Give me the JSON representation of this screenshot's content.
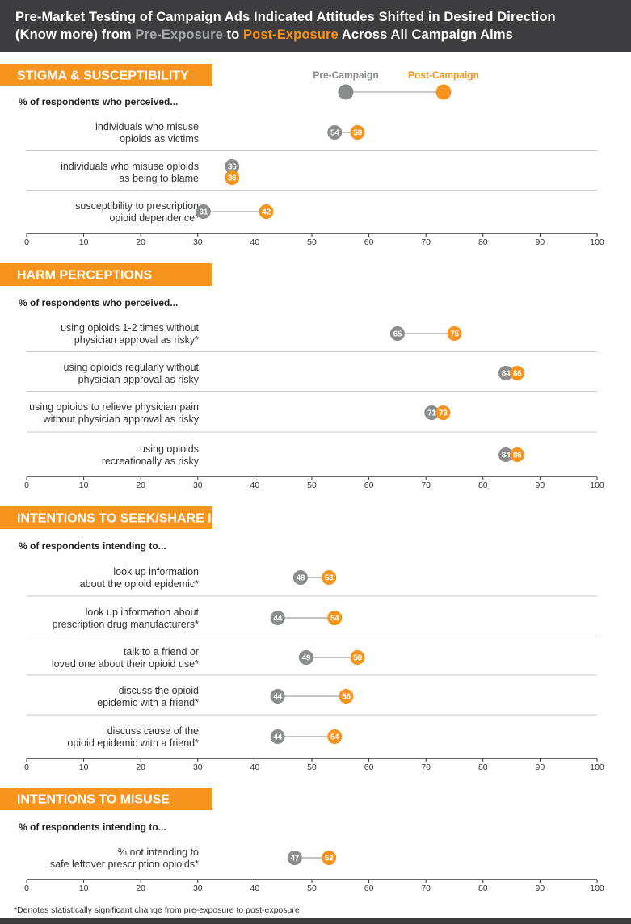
{
  "header": {
    "line1": "Pre-Market Testing of Campaign Ads Indicated Attitudes Shifted in Desired Direction",
    "line2_a": "(Know more) from ",
    "pre_word": "Pre-Exposure",
    "line2_b": " to ",
    "post_word": "Post-Exposure",
    "line2_c": " Across All Campaign Aims"
  },
  "legend": {
    "pre": "Pre-Campaign",
    "post": "Post-Campaign"
  },
  "colors": {
    "pre": "#8a8c8e",
    "post": "#f7941d",
    "header_bg": "#3d3d3f",
    "section_bg": "#f7941d"
  },
  "footnote": "*Denotes statistically significant change from pre-exposure to post-exposure",
  "chart_data": {
    "type": "dumbbell",
    "xlim": [
      0,
      100
    ],
    "xticks": [
      0,
      10,
      20,
      30,
      40,
      50,
      60,
      70,
      80,
      90,
      100
    ],
    "series": [
      {
        "name": "Pre-Campaign"
      },
      {
        "name": "Post-Campaign"
      }
    ],
    "sections": [
      {
        "title": "STIGMA & SUSCEPTIBILITY",
        "subtitle": "% of respondents who perceived...",
        "rows": [
          {
            "label": [
              "individuals who misuse",
              "opioids as victims"
            ],
            "pre": 54,
            "post": 58
          },
          {
            "label": [
              "individuals who misuse opioids",
              "as being to blame"
            ],
            "pre": 36,
            "post": 36
          },
          {
            "label": [
              "susceptibility to prescription",
              "opioid dependence*"
            ],
            "pre": 31,
            "post": 42
          }
        ]
      },
      {
        "title": "HARM PERCEPTIONS",
        "subtitle": "% of respondents who perceived...",
        "rows": [
          {
            "label": [
              "using opioids 1-2 times without",
              "physician approval as risky*"
            ],
            "pre": 65,
            "post": 75
          },
          {
            "label": [
              "using opioids regularly without",
              "physician approval as risky"
            ],
            "pre": 84,
            "post": 86
          },
          {
            "label": [
              "using opioids to relieve physician pain",
              "without physician approval as risky"
            ],
            "pre": 71,
            "post": 73
          },
          {
            "label": [
              "using opioids",
              "recreationally as risky"
            ],
            "pre": 84,
            "post": 86
          }
        ]
      },
      {
        "title": "INTENTIONS TO SEEK/SHARE INFORMATION",
        "subtitle": "% of respondents intending to...",
        "rows": [
          {
            "label": [
              "look up information",
              "about the opioid epidemic*"
            ],
            "pre": 48,
            "post": 53
          },
          {
            "label": [
              "look up information about",
              "prescription drug manufacturers*"
            ],
            "pre": 44,
            "post": 54
          },
          {
            "label": [
              "talk to a friend or",
              "loved one about their opioid use*"
            ],
            "pre": 49,
            "post": 58
          },
          {
            "label": [
              "discuss the opioid",
              "epidemic with a friend*"
            ],
            "pre": 44,
            "post": 56
          },
          {
            "label": [
              "discuss cause of the",
              "opioid epidemic with a friend*"
            ],
            "pre": 44,
            "post": 54
          }
        ]
      },
      {
        "title": "INTENTIONS TO MISUSE",
        "subtitle": "% of respondents intending to...",
        "rows": [
          {
            "label": [
              "% not intending to",
              "safe leftover prescription opioids*"
            ],
            "pre": 47,
            "post": 53
          }
        ]
      }
    ]
  }
}
